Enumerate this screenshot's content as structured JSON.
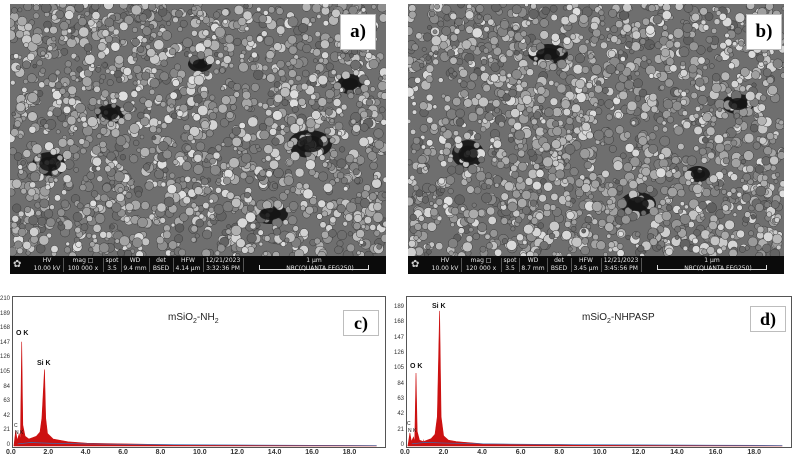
{
  "panels": {
    "a": {
      "label": "a)",
      "sem": {
        "hv_h": "HV",
        "hv": "10.00 kV",
        "mag_h": "mag □",
        "mag": "100 000 x",
        "spot_h": "spot",
        "spot": "3.5",
        "wd_h": "WD",
        "wd": "9.4 mm",
        "det_h": "det",
        "det": "BSED",
        "hfw_h": "HFW",
        "hfw": "4.14 µm",
        "date": "12/21/2023",
        "time": "3:32:36 PM",
        "scale": "1 µm",
        "instrument": "NRC(QUANTA FEG250)"
      }
    },
    "b": {
      "label": "b)",
      "sem": {
        "hv_h": "HV",
        "hv": "10.00 kV",
        "mag_h": "mag □",
        "mag": "120 000 x",
        "spot_h": "spot",
        "spot": "3.5",
        "wd_h": "WD",
        "wd": "8.7 mm",
        "det_h": "det",
        "det": "BSED",
        "hfw_h": "HFW",
        "hfw": "3.45 µm",
        "date": "12/21/2023",
        "time": "3:45:56 PM",
        "scale": "1 µm",
        "instrument": "NRC(QUANTA FEG250)"
      }
    },
    "c": {
      "label": "c)",
      "title_main": "mSiO",
      "title_sub": "2",
      "title_tail": "-NH",
      "title_sub2": "2",
      "peaks": {
        "o": "O K",
        "si": "Si K",
        "c": "C",
        "n": "N K"
      }
    },
    "d": {
      "label": "d)",
      "title_main": "mSiO",
      "title_sub": "2",
      "title_tail": "-NHPASP",
      "title_sub2": "",
      "peaks": {
        "o": "O K",
        "si": "Si K",
        "c": "C",
        "n": "N K"
      }
    }
  },
  "chart_data": [
    {
      "type": "line",
      "title": "mSiO2-NH2",
      "xlim": [
        0,
        20
      ],
      "x_ticks": [
        "0.0",
        "2.0",
        "4.0",
        "6.0",
        "8.0",
        "10.0",
        "12.0",
        "14.0",
        "16.0",
        "18.0"
      ],
      "ylim": [
        0,
        210
      ],
      "y_ticks": [
        "0",
        "21",
        "42",
        "63",
        "84",
        "105",
        "126",
        "147",
        "168",
        "189",
        "210"
      ],
      "series": [
        {
          "color": "#cc1111",
          "points": [
            [
              0.1,
              0
            ],
            [
              0.2,
              22
            ],
            [
              0.28,
              8
            ],
            [
              0.39,
              18
            ],
            [
              0.45,
              6
            ],
            [
              0.52,
              150
            ],
            [
              0.58,
              30
            ],
            [
              0.7,
              14
            ],
            [
              0.9,
              10
            ],
            [
              1.1,
              12
            ],
            [
              1.3,
              14
            ],
            [
              1.5,
              20
            ],
            [
              1.6,
              40
            ],
            [
              1.74,
              110
            ],
            [
              1.8,
              40
            ],
            [
              1.9,
              18
            ],
            [
              2.2,
              10
            ],
            [
              2.6,
              8
            ],
            [
              3.0,
              6
            ],
            [
              4.0,
              4
            ],
            [
              6.0,
              3
            ],
            [
              8.0,
              2
            ],
            [
              10.0,
              1
            ],
            [
              14.0,
              1
            ],
            [
              19.5,
              0
            ]
          ]
        }
      ]
    },
    {
      "type": "line",
      "title": "mSiO2-NHPASP",
      "xlim": [
        0,
        20
      ],
      "x_ticks": [
        "0.0",
        "2.0",
        "4.0",
        "6.0",
        "8.0",
        "10.0",
        "12.0",
        "14.0",
        "16.0",
        "18.0"
      ],
      "ylim": [
        0,
        200
      ],
      "y_ticks": [
        "0",
        "21",
        "42",
        "63",
        "84",
        "105",
        "126",
        "147",
        "168",
        "189"
      ],
      "series": [
        {
          "color": "#cc1111",
          "points": [
            [
              0.1,
              0
            ],
            [
              0.2,
              18
            ],
            [
              0.28,
              6
            ],
            [
              0.39,
              12
            ],
            [
              0.45,
              5
            ],
            [
              0.52,
              100
            ],
            [
              0.58,
              20
            ],
            [
              0.7,
              8
            ],
            [
              0.9,
              6
            ],
            [
              1.1,
              8
            ],
            [
              1.3,
              10
            ],
            [
              1.5,
              16
            ],
            [
              1.62,
              40
            ],
            [
              1.74,
              185
            ],
            [
              1.82,
              40
            ],
            [
              1.95,
              14
            ],
            [
              2.2,
              8
            ],
            [
              2.6,
              6
            ],
            [
              3.0,
              5
            ],
            [
              4.0,
              3
            ],
            [
              6.0,
              2
            ],
            [
              8.0,
              2
            ],
            [
              10.0,
              1
            ],
            [
              14.0,
              1
            ],
            [
              19.5,
              0
            ]
          ]
        }
      ]
    }
  ]
}
